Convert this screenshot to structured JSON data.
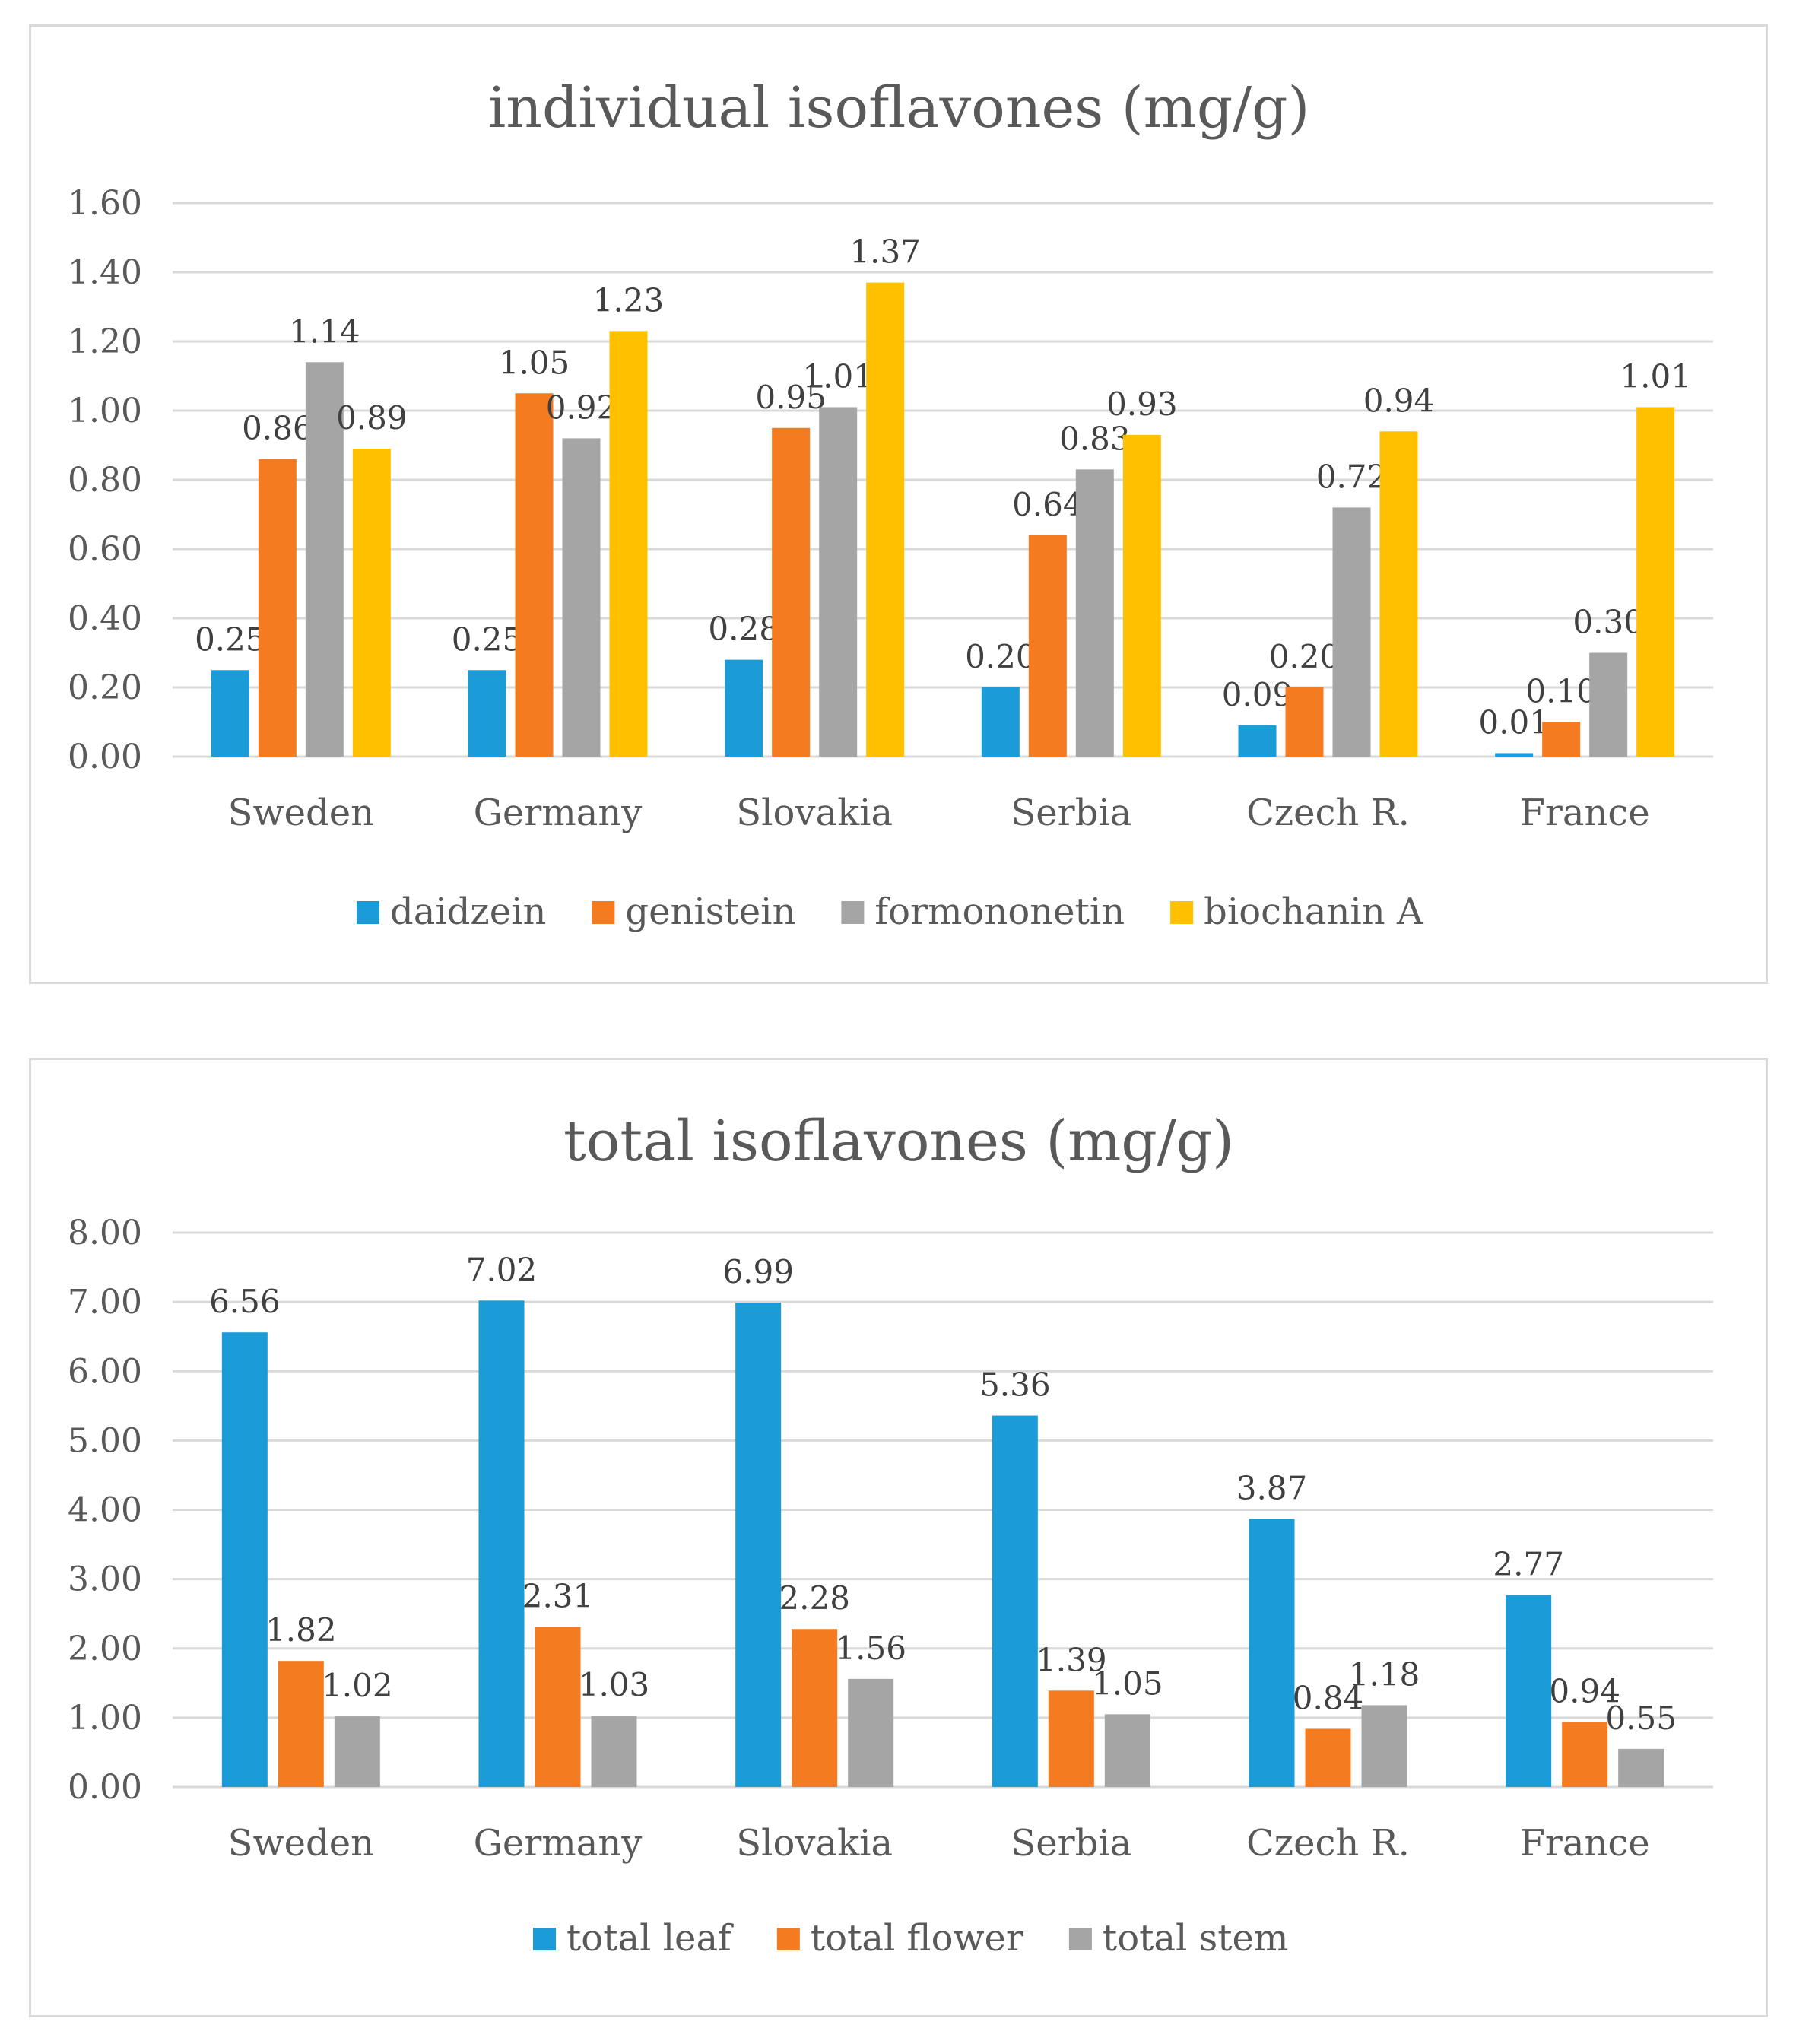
{
  "chart_data": [
    {
      "type": "bar",
      "title": "individual isoflavones (mg/g)",
      "categories": [
        "Sweden",
        "Germany",
        "Slovakia",
        "Serbia",
        "Czech R.",
        "France"
      ],
      "ylim": [
        0,
        1.6
      ],
      "yticks": [
        "0.00",
        "0.20",
        "0.40",
        "0.60",
        "0.80",
        "1.00",
        "1.20",
        "1.40",
        "1.60"
      ],
      "grid": true,
      "legend": "bottom",
      "series": [
        {
          "name": "daidzein",
          "color": "#1b9bd7",
          "values": [
            0.25,
            0.25,
            0.28,
            0.2,
            0.09,
            0.01
          ],
          "labels": [
            "0.25",
            "0.25",
            "0.28",
            "0.20",
            "0.09",
            "0.01"
          ]
        },
        {
          "name": "genistein",
          "color": "#f47b20",
          "values": [
            0.86,
            1.05,
            0.95,
            0.64,
            0.2,
            0.1
          ],
          "labels": [
            "0.86",
            "1.05",
            "0.95",
            "0.64",
            "0.20",
            "0.10"
          ]
        },
        {
          "name": "formononetin",
          "color": "#a5a5a5",
          "values": [
            1.14,
            0.92,
            1.01,
            0.83,
            0.72,
            0.3
          ],
          "labels": [
            "1.14",
            "0.92",
            "1.01",
            "0.83",
            "0.72",
            "0.30"
          ]
        },
        {
          "name": "biochanin A",
          "color": "#ffc000",
          "values": [
            0.89,
            1.23,
            1.37,
            0.93,
            0.94,
            1.01
          ],
          "labels": [
            "0.89",
            "1.23",
            "1.37",
            "0.93",
            "0.94",
            "1.01"
          ]
        }
      ]
    },
    {
      "type": "bar",
      "title": "total isoflavones (mg/g)",
      "categories": [
        "Sweden",
        "Germany",
        "Slovakia",
        "Serbia",
        "Czech R.",
        "France"
      ],
      "ylim": [
        0,
        8
      ],
      "yticks": [
        "0.00",
        "1.00",
        "2.00",
        "3.00",
        "4.00",
        "5.00",
        "6.00",
        "7.00",
        "8.00"
      ],
      "grid": true,
      "legend": "bottom",
      "series": [
        {
          "name": "total leaf",
          "color": "#1b9bd7",
          "values": [
            6.56,
            7.02,
            6.99,
            5.36,
            3.87,
            2.77
          ],
          "labels": [
            "6.56",
            "7.02",
            "6.99",
            "5.36",
            "3.87",
            "2.77"
          ]
        },
        {
          "name": "total flower",
          "color": "#f47b20",
          "values": [
            1.82,
            2.31,
            2.28,
            1.39,
            0.84,
            0.94
          ],
          "labels": [
            "1.82",
            "2.31",
            "2.28",
            "1.39",
            "0.84",
            "0.94"
          ]
        },
        {
          "name": "total stem",
          "color": "#a5a5a5",
          "values": [
            1.02,
            1.03,
            1.56,
            1.05,
            1.18,
            0.55
          ],
          "labels": [
            "1.02",
            "1.03",
            "1.56",
            "1.05",
            "1.18",
            "0.55"
          ]
        }
      ]
    }
  ]
}
